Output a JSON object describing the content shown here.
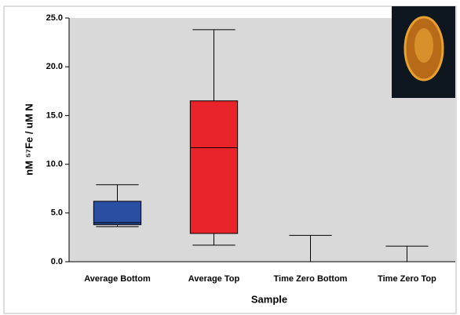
{
  "chart_data": {
    "type": "box",
    "x_label": "Sample",
    "y_label": "nM ⁵⁷Fe / uM N",
    "categories": [
      "Average Bottom",
      "Average Top",
      "Time Zero Bottom",
      "Time Zero Top"
    ],
    "boxes": [
      {
        "low": 3.6,
        "q1": 3.8,
        "median": 4.0,
        "q3": 6.2,
        "high": 7.9
      },
      {
        "low": 1.7,
        "q1": 2.9,
        "median": 11.7,
        "q3": 16.5,
        "high": 23.8
      },
      {
        "low": 0,
        "q1": 0,
        "median": 0,
        "q3": 0,
        "high": 2.7
      },
      {
        "low": 0,
        "q1": 0,
        "median": 0,
        "q3": 0,
        "high": 1.6
      }
    ],
    "colors": [
      "#2b4fa0",
      "#e8242a",
      null,
      null
    ],
    "ylim": [
      0,
      25
    ],
    "yticks": [
      {
        "value": 0,
        "label": "0.0"
      },
      {
        "value": 5,
        "label": "5.0"
      },
      {
        "value": 10,
        "label": "10.0"
      },
      {
        "value": 15,
        "label": "15.0"
      },
      {
        "value": 20,
        "label": "20.0"
      },
      {
        "value": 25,
        "label": "25.0"
      }
    ],
    "grid": false
  }
}
